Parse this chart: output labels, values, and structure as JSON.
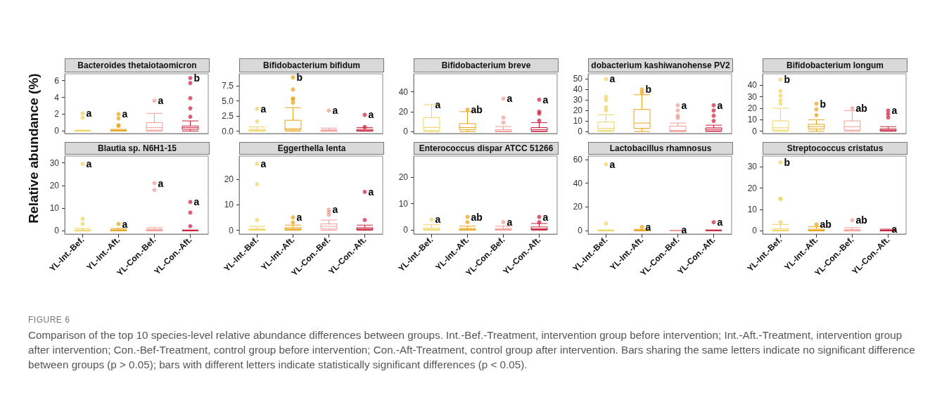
{
  "chart_data": [
    {
      "type": "box",
      "title": "Bacteroides thetaiotaomicron",
      "ylabel": "Relative abundance (%)",
      "categories": [
        null,
        null,
        null,
        null
      ],
      "colors": [
        "#efd45c",
        "#e8a317",
        "#f29a94",
        "#c8203c"
      ],
      "tick_labels": "y",
      "ylim": [
        -0.3,
        6.8
      ],
      "yticks": [
        0,
        2,
        4,
        6
      ],
      "boxes": [
        {
          "low": 0,
          "q1": 0,
          "median": 0,
          "q3": 0.05,
          "high": 0.1,
          "outliers": [
            1.6,
            2.1
          ]
        },
        {
          "low": 0,
          "q1": 0,
          "median": 0.05,
          "q3": 0.1,
          "high": 0.2,
          "outliers": [
            0.6,
            0.7,
            1.5,
            2.0
          ]
        },
        {
          "low": 0,
          "q1": 0.1,
          "median": 0.4,
          "q3": 1.0,
          "high": 2.1,
          "outliers": [
            3.6
          ]
        },
        {
          "low": 0,
          "q1": 0.2,
          "median": 0.4,
          "q3": 0.6,
          "high": 1.2,
          "outliers": [
            1.7,
            2.7,
            3.9,
            5.7,
            6.3
          ]
        }
      ],
      "annotations": [
        "a",
        "a",
        "a",
        "b",
        "FIGURE 6",
        "Comparison of the top 10 species-level relative abundance differences between groups. Int.-Bef.-Treatment, intervention group before intervention; Int.-Aft.-Treatment, intervention group after intervention; Con.-Bef-Treatment, control group before intervention; Con.-Aft-Treatment, control group after intervention. Bars sharing the same letters indicate no significant difference between groups (p > 0.05); bars with different letters indicate statistically significant differences (p < 0.05)."
      ]
    },
    {
      "type": "box",
      "title": "Bifidobacterium bifidum",
      "categories": [
        null,
        null,
        null,
        null
      ],
      "colors": [
        "#efd45c",
        "#e8a317",
        "#f29a94",
        "#c8203c"
      ],
      "tick_labels": "y",
      "ylim": [
        -0.4,
        9.5
      ],
      "yticks": [
        {
          "value": 0,
          "label": "0.0"
        },
        {
          "value": 2.5,
          "label": "2.5"
        },
        {
          "value": 5,
          "label": "5.0"
        },
        {
          "value": 7.5,
          "label": "7.5"
        }
      ],
      "boxes": [
        {
          "low": 0,
          "q1": 0,
          "median": 0.1,
          "q3": 0.3,
          "high": 0.7,
          "outliers": [
            1.6,
            3.7
          ]
        },
        {
          "low": 0,
          "q1": 0.2,
          "median": 0.4,
          "q3": 1.8,
          "high": 3.9,
          "outliers": [
            4.7,
            5.3,
            5.4,
            6.9,
            8.9
          ]
        },
        {
          "low": 0,
          "q1": 0,
          "median": 0.1,
          "q3": 0.2,
          "high": 0.5,
          "outliers": [
            3.4
          ]
        },
        {
          "low": 0,
          "q1": 0,
          "median": 0.1,
          "q3": 0.3,
          "high": 0.6,
          "outliers": [
            0.7,
            2.7
          ]
        }
      ],
      "annotations": [
        "a",
        "b",
        "a",
        "a"
      ]
    },
    {
      "type": "box",
      "title": "Bifidobacterium breve",
      "categories": [
        null,
        null,
        null,
        null
      ],
      "colors": [
        "#efd45c",
        "#e8a317",
        "#f29a94",
        "#c8203c"
      ],
      "tick_labels": "y",
      "ylim": [
        -2,
        58
      ],
      "yticks": [
        0,
        20,
        40
      ],
      "boxes": [
        {
          "low": 0,
          "q1": 1,
          "median": 4,
          "q3": 14,
          "high": 27
        },
        {
          "low": 0,
          "q1": 2,
          "median": 4,
          "q3": 8,
          "high": 20,
          "outliers": [
            22
          ]
        },
        {
          "low": 0,
          "q1": 0,
          "median": 0.5,
          "q3": 2,
          "high": 5,
          "outliers": [
            9,
            14,
            33
          ]
        },
        {
          "low": 0,
          "q1": 0.5,
          "median": 2,
          "q3": 4,
          "high": 9,
          "outliers": [
            11,
            18,
            20,
            32
          ]
        }
      ],
      "annotations": [
        "a",
        "ab",
        "a",
        "a"
      ]
    },
    {
      "type": "box",
      "title": "dobacterium kashiwanohense PV2",
      "categories": [
        null,
        null,
        null,
        null
      ],
      "colors": [
        "#efd45c",
        "#e8a317",
        "#f29a94",
        "#c8203c"
      ],
      "tick_labels": "y",
      "ylim": [
        -2,
        55
      ],
      "yticks": [
        0,
        10,
        20,
        30,
        40,
        50
      ],
      "boxes": [
        {
          "low": 0,
          "q1": 1,
          "median": 3,
          "q3": 9,
          "high": 16,
          "outliers": [
            20,
            23,
            30,
            33,
            50
          ]
        },
        {
          "low": 0,
          "q1": 3,
          "median": 8,
          "q3": 21,
          "high": 35,
          "outliers": [
            37,
            40
          ]
        },
        {
          "low": 0,
          "q1": 0,
          "median": 1,
          "q3": 5,
          "high": 8,
          "outliers": [
            13,
            15,
            20,
            25
          ]
        },
        {
          "low": 0,
          "q1": 0.5,
          "median": 2,
          "q3": 3.5,
          "high": 6,
          "outliers": [
            10,
            15,
            20,
            25
          ]
        }
      ],
      "annotations": [
        "a",
        "b",
        "a",
        "a"
      ]
    },
    {
      "type": "box",
      "title": "Bifidobacterium longum",
      "categories": [
        null,
        null,
        null,
        null
      ],
      "colors": [
        "#efd45c",
        "#e8a317",
        "#f29a94",
        "#c8203c"
      ],
      "tick_labels": "y",
      "ylim": [
        -2,
        50
      ],
      "yticks": [
        0,
        10,
        20,
        30,
        40
      ],
      "boxes": [
        {
          "low": 0,
          "q1": 1,
          "median": 3,
          "q3": 9,
          "high": 20,
          "outliers": [
            24,
            27,
            31,
            35,
            45
          ]
        },
        {
          "low": 0,
          "q1": 2,
          "median": 4,
          "q3": 6,
          "high": 10,
          "outliers": [
            14,
            19,
            24
          ]
        },
        {
          "low": 0,
          "q1": 1,
          "median": 4,
          "q3": 9,
          "high": 18,
          "outliers": [
            20
          ]
        },
        {
          "low": 0,
          "q1": 0.5,
          "median": 1,
          "q3": 2,
          "high": 4,
          "outliers": [
            12,
            15,
            18
          ]
        }
      ],
      "annotations": [
        "b",
        "b",
        "ab",
        "a"
      ]
    },
    {
      "type": "box",
      "title": "Blautia sp. N6H1-15",
      "categories": [
        "YL-Int.-Bef.",
        "YL-Int.-Aft.",
        "YL-Con.-Bef.",
        "YL-Con.-Aft."
      ],
      "colors": [
        "#efd45c",
        "#e8a317",
        "#f29a94",
        "#c8203c"
      ],
      "ylim": [
        -1.5,
        33
      ],
      "yticks": [
        0,
        10,
        20,
        30
      ],
      "boxes": [
        {
          "low": 0,
          "q1": 0,
          "median": 0,
          "q3": 0.3,
          "high": 1,
          "outliers": [
            3,
            5.2,
            29.5
          ]
        },
        {
          "low": 0,
          "q1": 0,
          "median": 0.1,
          "q3": 0.4,
          "high": 1,
          "outliers": [
            3
          ]
        },
        {
          "low": 0,
          "q1": 0,
          "median": 0.2,
          "q3": 0.6,
          "high": 1.3,
          "outliers": [
            18,
            21
          ]
        },
        {
          "low": 0,
          "q1": 0,
          "median": 0,
          "q3": 0.1,
          "high": 0.3,
          "outliers": [
            2,
            8,
            12.7
          ]
        }
      ],
      "annotations": [
        "a",
        "a",
        "a",
        "a"
      ]
    },
    {
      "type": "box",
      "title": "Eggerthella lenta",
      "categories": [
        "YL-Int.-Bef.",
        "YL-Int.-Aft.",
        "YL-Con.-Bef.",
        "YL-Con.-Aft."
      ],
      "colors": [
        "#efd45c",
        "#e8a317",
        "#f29a94",
        "#c8203c"
      ],
      "ylim": [
        -1.5,
        29
      ],
      "yticks": [
        0,
        10,
        20
      ],
      "boxes": [
        {
          "low": 0,
          "q1": 0,
          "median": 0.2,
          "q3": 0.5,
          "high": 1.5,
          "outliers": [
            4,
            18,
            26
          ]
        },
        {
          "low": 0,
          "q1": 0.2,
          "median": 0.5,
          "q3": 1,
          "high": 2,
          "outliers": [
            3,
            5
          ]
        },
        {
          "low": 0,
          "q1": 0.5,
          "median": 1.5,
          "q3": 2.5,
          "high": 4,
          "outliers": [
            6,
            7,
            8
          ]
        },
        {
          "low": 0,
          "q1": 0.2,
          "median": 0.5,
          "q3": 1,
          "high": 2,
          "outliers": [
            4,
            15
          ]
        }
      ],
      "annotations": [
        "a",
        "a",
        "a",
        "a"
      ]
    },
    {
      "type": "box",
      "title": "Enterococcus dispar ATCC 51266",
      "categories": [
        "YL-Int.-Bef.",
        "YL-Int.-Aft.",
        "YL-Con.-Bef.",
        "YL-Con.-Aft."
      ],
      "colors": [
        "#efd45c",
        "#e8a317",
        "#f29a94",
        "#c8203c"
      ],
      "ylim": [
        -1.5,
        28
      ],
      "yticks": [
        0,
        10,
        20
      ],
      "boxes": [
        {
          "low": 0,
          "q1": 0,
          "median": 0.3,
          "q3": 0.8,
          "high": 2,
          "outliers": [
            4
          ]
        },
        {
          "low": 0,
          "q1": 0,
          "median": 0.3,
          "q3": 0.6,
          "high": 1.5,
          "outliers": [
            3,
            5
          ]
        },
        {
          "low": 0,
          "q1": 0,
          "median": 0.2,
          "q3": 0.6,
          "high": 1.5,
          "outliers": [
            3
          ]
        },
        {
          "low": 0,
          "q1": 0.2,
          "median": 0.5,
          "q3": 1.2,
          "high": 2.5,
          "outliers": [
            3,
            5
          ]
        }
      ],
      "annotations": [
        "a",
        "ab",
        "a",
        "a"
      ]
    },
    {
      "type": "box",
      "title": "Lactobacillus rhamnosus",
      "categories": [
        "YL-Int.-Bef.",
        "YL-Int.-Aft.",
        "YL-Con.-Bef.",
        "YL-Con.-Aft."
      ],
      "colors": [
        "#efd45c",
        "#e8a317",
        "#f29a94",
        "#c8203c"
      ],
      "ylim": [
        -3,
        63
      ],
      "yticks": [
        0,
        20,
        40,
        60
      ],
      "boxes": [
        {
          "low": 0,
          "q1": 0,
          "median": 0,
          "q3": 0,
          "high": 0.5,
          "outliers": [
            6,
            56
          ]
        },
        {
          "low": 0,
          "q1": 0,
          "median": 0,
          "q3": 0.2,
          "high": 1,
          "outliers": [
            3
          ]
        },
        {
          "low": 0,
          "q1": 0,
          "median": 0,
          "q3": 0,
          "high": 0.3
        },
        {
          "low": 0,
          "q1": 0,
          "median": 0,
          "q3": 0.2,
          "high": 0.5,
          "outliers": [
            7
          ]
        }
      ],
      "annotations": [
        "a",
        "a",
        "a",
        "a"
      ]
    },
    {
      "type": "box",
      "title": "Streptococcus cristatus",
      "categories": [
        "YL-Int.-Bef.",
        "YL-Int.-Aft.",
        "YL-Con.-Bef.",
        "YL-Con.-Aft."
      ],
      "colors": [
        "#efd45c",
        "#e8a317",
        "#f29a94",
        "#c8203c"
      ],
      "ylim": [
        -1.5,
        35
      ],
      "yticks": [
        0,
        10,
        20,
        30
      ],
      "boxes": [
        {
          "low": 0,
          "q1": 0,
          "median": 0.3,
          "q3": 1,
          "high": 3,
          "outliers": [
            4,
            15,
            15,
            32
          ]
        },
        {
          "low": 0,
          "q1": 0,
          "median": 0.3,
          "q3": 0.8,
          "high": 2,
          "outliers": [
            3
          ]
        },
        {
          "low": 0,
          "q1": 0,
          "median": 0.2,
          "q3": 0.6,
          "high": 1.5,
          "outliers": [
            5
          ]
        },
        {
          "low": 0,
          "q1": 0,
          "median": 0.1,
          "q3": 0.3,
          "high": 0.8
        }
      ],
      "annotations": [
        "b",
        "ab",
        "ab",
        "a"
      ]
    }
  ]
}
